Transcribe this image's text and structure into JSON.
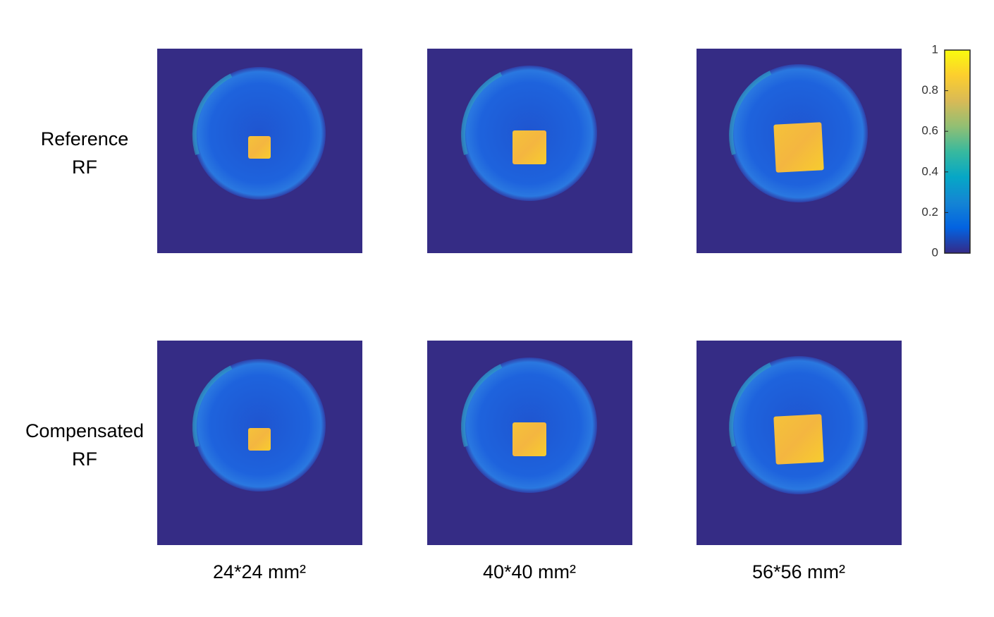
{
  "rows": [
    {
      "label": [
        "Reference",
        "RF"
      ]
    },
    {
      "label": [
        "Compensated",
        "RF"
      ]
    }
  ],
  "columns": [
    {
      "label": "24*24 mm²"
    },
    {
      "label": "40*40 mm²"
    },
    {
      "label": "56*56 mm²"
    }
  ],
  "colorbar": {
    "lim": [
      0,
      1
    ],
    "ticks": [
      0,
      0.2,
      0.4,
      0.6,
      0.8,
      1
    ]
  }
}
